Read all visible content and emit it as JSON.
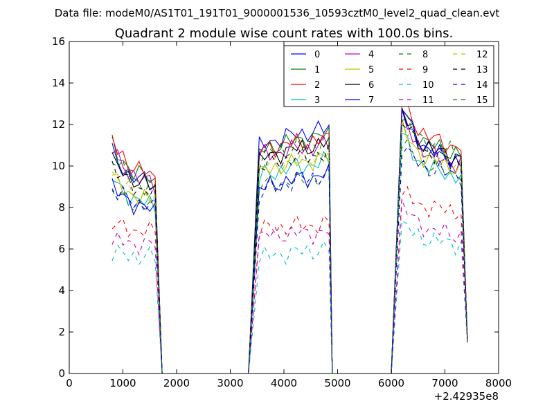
{
  "figure": {
    "suptitle": "Data file: modeM0/AS1T01_191T01_9000001536_10593cztM0_level2_quad_clean.evt"
  },
  "chart_data": {
    "type": "line",
    "title": "Quadrant 2 module wise count rates with 100.0s bins.",
    "xlabel": "",
    "ylabel": "",
    "x_offset_label": "+2.42935e8",
    "xlim": [
      0,
      8000
    ],
    "ylim": [
      0,
      16
    ],
    "xticks": [
      0,
      1000,
      2000,
      3000,
      4000,
      5000,
      6000,
      7000,
      8000
    ],
    "yticks": [
      0,
      2,
      4,
      6,
      8,
      10,
      12,
      14,
      16
    ],
    "grid": false,
    "legend_position": "top-right",
    "legend_columns": 4,
    "series": [
      {
        "name": "0",
        "color": "#0000ff",
        "dash": "solid",
        "values": [
          10.6,
          9.0,
          10.9,
          11.8,
          12.5,
          10.2
        ]
      },
      {
        "name": "1",
        "color": "#008000",
        "dash": "solid",
        "values": [
          11.0,
          9.2,
          10.6,
          11.5,
          12.8,
          10.5
        ]
      },
      {
        "name": "2",
        "color": "#ff0000",
        "dash": "solid",
        "values": [
          11.2,
          9.4,
          10.7,
          11.3,
          13.2,
          10.8
        ]
      },
      {
        "name": "3",
        "color": "#00bfbf",
        "dash": "solid",
        "values": [
          9.4,
          8.0,
          9.4,
          10.2,
          11.5,
          9.4
        ]
      },
      {
        "name": "4",
        "color": "#bf00bf",
        "dash": "solid",
        "values": [
          10.8,
          9.0,
          10.4,
          11.0,
          12.4,
          10.0
        ]
      },
      {
        "name": "5",
        "color": "#bfbf00",
        "dash": "solid",
        "values": [
          9.5,
          8.2,
          9.6,
          10.4,
          11.8,
          9.8
        ]
      },
      {
        "name": "6",
        "color": "#000000",
        "dash": "solid",
        "values": [
          10.3,
          8.9,
          10.2,
          11.1,
          12.6,
          10.3
        ]
      },
      {
        "name": "7",
        "color": "#0000ff",
        "dash": "solid",
        "values": [
          9.0,
          7.8,
          8.8,
          9.6,
          12.9,
          10.1
        ]
      },
      {
        "name": "8",
        "color": "#008000",
        "dash": "dashed",
        "values": [
          8.7,
          8.0,
          9.0,
          9.4,
          11.2,
          9.6
        ]
      },
      {
        "name": "9",
        "color": "#ff0000",
        "dash": "dashed",
        "values": [
          7.2,
          6.8,
          6.9,
          7.2,
          8.7,
          7.8
        ]
      },
      {
        "name": "10",
        "color": "#00bfbf",
        "dash": "dashed",
        "values": [
          5.8,
          5.6,
          5.5,
          6.0,
          7.2,
          6.2
        ]
      },
      {
        "name": "11",
        "color": "#bf00bf",
        "dash": "dashed",
        "values": [
          6.4,
          6.2,
          6.6,
          6.8,
          8.1,
          6.6
        ]
      },
      {
        "name": "12",
        "color": "#bfbf00",
        "dash": "dashed",
        "values": [
          9.6,
          8.3,
          9.8,
          10.5,
          12.2,
          9.9
        ]
      },
      {
        "name": "13",
        "color": "#000000",
        "dash": "dashed",
        "values": [
          10.0,
          8.6,
          9.9,
          10.6,
          12.3,
          10.1
        ]
      },
      {
        "name": "14",
        "color": "#0000ff",
        "dash": "dashed",
        "values": [
          8.9,
          8.0,
          8.6,
          9.6,
          11.0,
          9.5
        ]
      },
      {
        "name": "15",
        "color": "#008000",
        "dash": "dashed",
        "values": [
          10.5,
          8.8,
          10.3,
          11.2,
          12.5,
          10.6
        ]
      }
    ]
  }
}
